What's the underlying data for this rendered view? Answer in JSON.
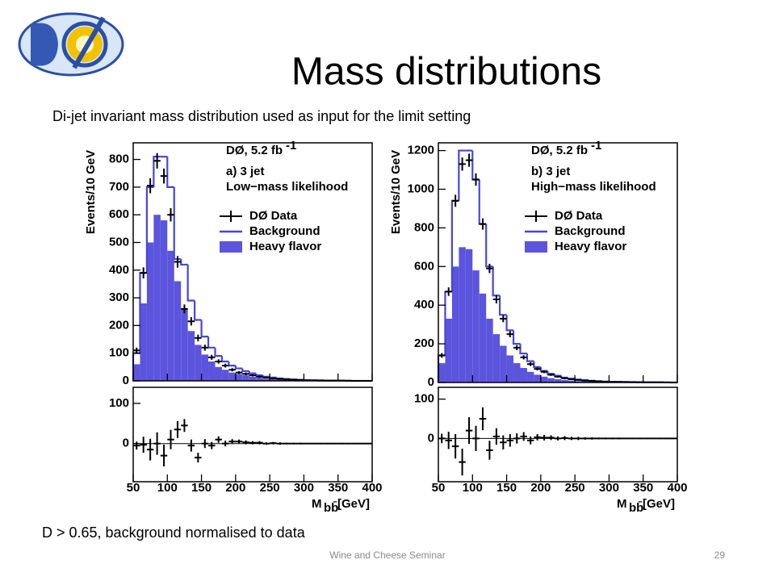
{
  "title": "Mass distributions",
  "subtitle": "Di-jet invariant mass distribution used as input for the limit setting",
  "footnote": "D > 0.65, background normalised to data",
  "footer": "Wine and Cheese Seminar",
  "page_number": "29",
  "chart_data": [
    {
      "type": "histogram",
      "annotation": "DØ, 5.2 fb",
      "annotation_sup": "-1",
      "panel": "a) 3 jet",
      "subtitle": "Low−mass likelihood",
      "ylabel": "Events/10 GeV",
      "xlabel": "M",
      "xlabel_sub": "bb̄",
      "xlabel_unit": "[GeV]",
      "bins": [
        50,
        60,
        70,
        80,
        90,
        100,
        110,
        120,
        130,
        140,
        150,
        160,
        170,
        180,
        190,
        200,
        210,
        220,
        230,
        240,
        250,
        260,
        270,
        280,
        290,
        300,
        310,
        320,
        330,
        340,
        350,
        360,
        370,
        380,
        390,
        400
      ],
      "xlim": [
        50,
        400
      ],
      "xticks": [
        50,
        100,
        150,
        200,
        250,
        300,
        350,
        400
      ],
      "ylim": [
        0,
        860
      ],
      "yticks": [
        0,
        100,
        200,
        300,
        400,
        500,
        600,
        700,
        800
      ],
      "series": [
        {
          "name": "DØ Data",
          "color": "#000000",
          "values": [
            110,
            390,
            705,
            795,
            740,
            600,
            430,
            260,
            215,
            155,
            120,
            85,
            70,
            55,
            40,
            30,
            25,
            20,
            15,
            12,
            9,
            7,
            5,
            4,
            3,
            2,
            2,
            1,
            1,
            1,
            1,
            0,
            0,
            0,
            0
          ],
          "errors": [
            10,
            20,
            27,
            28,
            27,
            24,
            21,
            16,
            15,
            12,
            11,
            9,
            8,
            7,
            6,
            5,
            5,
            4,
            4,
            3,
            3,
            3,
            2,
            2,
            2,
            1,
            1,
            1,
            1,
            1,
            1,
            0,
            0,
            0,
            0
          ]
        },
        {
          "name": "Background",
          "color": "#4646d8",
          "values": [
            100,
            390,
            700,
            810,
            810,
            700,
            440,
            420,
            290,
            220,
            160,
            120,
            90,
            70,
            55,
            45,
            35,
            27,
            20,
            15,
            12,
            9,
            7,
            5,
            4,
            3,
            2,
            2,
            1,
            1,
            1,
            1,
            0,
            0,
            0
          ]
        },
        {
          "name": "Heavy flavor",
          "color": "#5b55dd",
          "values": [
            60,
            280,
            500,
            600,
            580,
            470,
            360,
            260,
            180,
            130,
            95,
            70,
            50,
            40,
            30,
            25,
            20,
            15,
            11,
            8,
            6,
            5,
            4,
            3,
            2,
            2,
            1,
            1,
            1,
            1,
            0,
            0,
            0,
            0,
            0
          ]
        }
      ],
      "residual": {
        "values": [
          -5,
          -3,
          -15,
          0,
          -30,
          10,
          35,
          45,
          -5,
          -35,
          0,
          -5,
          10,
          0,
          5,
          5,
          3,
          2,
          2,
          0,
          1,
          0,
          0,
          0,
          0,
          0,
          0,
          0,
          0,
          0,
          0,
          0,
          0,
          0,
          0
        ],
        "errors": [
          10,
          20,
          27,
          28,
          27,
          24,
          21,
          16,
          15,
          12,
          11,
          9,
          8,
          7,
          6,
          5,
          5,
          4,
          4,
          3,
          3,
          3,
          2,
          2,
          2,
          1,
          1,
          1,
          1,
          1,
          1,
          0,
          0,
          0,
          0
        ],
        "ylim": [
          -95,
          140
        ],
        "yticks": [
          0,
          100
        ]
      }
    },
    {
      "type": "histogram",
      "annotation": "DØ, 5.2 fb",
      "annotation_sup": "-1",
      "panel": "b) 3 jet",
      "subtitle": "High−mass likelihood",
      "ylabel": "Events/10 GeV",
      "xlabel": "M",
      "xlabel_sub": "bb̄",
      "xlabel_unit": "[GeV]",
      "bins": [
        50,
        60,
        70,
        80,
        90,
        100,
        110,
        120,
        130,
        140,
        150,
        160,
        170,
        180,
        190,
        200,
        210,
        220,
        230,
        240,
        250,
        260,
        270,
        280,
        290,
        300,
        310,
        320,
        330,
        340,
        350,
        360,
        370,
        380,
        390,
        400
      ],
      "xlim": [
        50,
        400
      ],
      "xticks": [
        50,
        100,
        150,
        200,
        250,
        300,
        350,
        400
      ],
      "ylim": [
        0,
        1240
      ],
      "yticks": [
        0,
        200,
        400,
        600,
        800,
        1000,
        1200
      ],
      "series": [
        {
          "name": "DØ Data",
          "color": "#000000",
          "values": [
            140,
            470,
            940,
            1130,
            1150,
            1050,
            820,
            590,
            430,
            330,
            250,
            180,
            130,
            95,
            70,
            55,
            40,
            30,
            22,
            17,
            13,
            10,
            8,
            6,
            4,
            3,
            3,
            2,
            2,
            1,
            1,
            1,
            1,
            0,
            0
          ],
          "errors": [
            12,
            22,
            31,
            34,
            34,
            32,
            29,
            24,
            21,
            18,
            16,
            13,
            11,
            10,
            8,
            7,
            6,
            5,
            5,
            4,
            4,
            3,
            3,
            2,
            2,
            2,
            2,
            1,
            1,
            1,
            1,
            1,
            1,
            0,
            0
          ]
        },
        {
          "name": "Background",
          "color": "#4646d8",
          "values": [
            140,
            470,
            940,
            1200,
            1200,
            1050,
            820,
            600,
            450,
            350,
            270,
            200,
            150,
            110,
            80,
            60,
            45,
            35,
            25,
            20,
            15,
            12,
            9,
            7,
            5,
            4,
            3,
            3,
            2,
            2,
            1,
            1,
            1,
            1,
            0
          ]
        },
        {
          "name": "Heavy flavor",
          "color": "#5b55dd",
          "values": [
            100,
            330,
            600,
            700,
            690,
            580,
            460,
            330,
            250,
            190,
            140,
            100,
            75,
            55,
            40,
            30,
            22,
            17,
            13,
            10,
            7,
            6,
            4,
            3,
            3,
            2,
            2,
            1,
            1,
            1,
            1,
            0,
            0,
            0,
            0
          ]
        }
      ],
      "residual": {
        "values": [
          0,
          -5,
          -20,
          -60,
          20,
          0,
          50,
          -30,
          5,
          -10,
          -5,
          0,
          5,
          -5,
          3,
          2,
          2,
          0,
          1,
          0,
          0,
          0,
          0,
          0,
          0,
          0,
          0,
          0,
          0,
          0,
          0,
          0,
          0,
          0,
          0
        ],
        "errors": [
          12,
          22,
          31,
          34,
          34,
          32,
          29,
          24,
          21,
          18,
          16,
          13,
          11,
          10,
          8,
          7,
          6,
          5,
          5,
          4,
          4,
          3,
          3,
          2,
          2,
          2,
          2,
          1,
          1,
          1,
          1,
          1,
          1,
          0,
          0
        ],
        "ylim": [
          -110,
          130
        ],
        "yticks": [
          0,
          100
        ]
      }
    }
  ]
}
